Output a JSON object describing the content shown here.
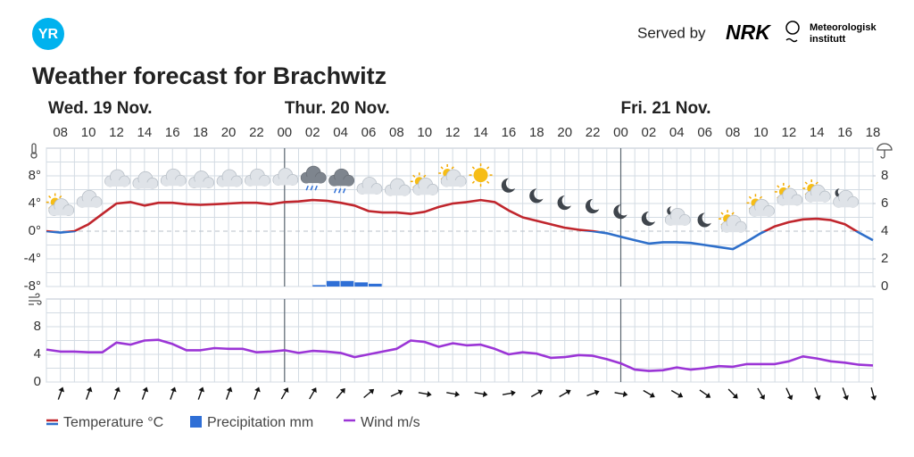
{
  "header": {
    "logo": "YR",
    "served_by": "Served by",
    "nrk_logo": "NRK",
    "met_logo": [
      "Meteorologisk",
      "institutt"
    ]
  },
  "chart_data": [
    {
      "type": "line",
      "title": "Weather forecast for Brachwitz",
      "days": [
        {
          "value": 0,
          "label": "Wed. 19 Nov."
        },
        {
          "value": 24,
          "label": "Thur. 20 Nov."
        },
        {
          "value": 48,
          "label": "Fri. 21 Nov."
        }
      ],
      "xlim": [
        7,
        66
      ],
      "xticks": [
        {
          "value": 8,
          "label": "08"
        },
        10,
        12,
        14,
        16,
        18,
        20,
        22,
        {
          "value": 24,
          "label": "00"
        },
        {
          "value": 26,
          "label": "02"
        },
        {
          "value": 28,
          "label": "04"
        },
        {
          "value": 30,
          "label": "06"
        },
        {
          "value": 32,
          "label": "08"
        },
        {
          "value": 34,
          "label": "10"
        },
        {
          "value": 36,
          "label": "12"
        },
        {
          "value": 38,
          "label": "14"
        },
        {
          "value": 40,
          "label": "16"
        },
        {
          "value": 42,
          "label": "18"
        },
        {
          "value": 44,
          "label": "20"
        },
        {
          "value": 46,
          "label": "22"
        },
        {
          "value": 48,
          "label": "00"
        },
        {
          "value": 50,
          "label": "02"
        },
        {
          "value": 52,
          "label": "04"
        },
        {
          "value": 54,
          "label": "06"
        },
        {
          "value": 56,
          "label": "08"
        },
        {
          "value": 58,
          "label": "10"
        },
        {
          "value": 60,
          "label": "12"
        },
        {
          "value": 62,
          "label": "14"
        },
        {
          "value": 64,
          "label": "16"
        },
        {
          "value": 66,
          "label": "18"
        }
      ],
      "ylim": [
        -8,
        12
      ],
      "yticks": [
        {
          "value": -8,
          "label": "-8°"
        },
        {
          "value": -4,
          "label": "-4°"
        },
        {
          "value": 0,
          "label": "0°"
        },
        {
          "value": 4,
          "label": "4°"
        },
        {
          "value": 8,
          "label": "8°"
        }
      ],
      "minor_yticks": [
        -6,
        -2,
        2,
        6,
        10
      ],
      "y2lim": [
        0,
        10
      ],
      "y2ticks": [
        0,
        2,
        4,
        6,
        8
      ],
      "grid": true,
      "series": [
        {
          "name": "Temperature °C",
          "color": "#c0262d",
          "color_below_zero": "#2e6fca",
          "x": [
            7,
            8,
            9,
            10,
            11,
            12,
            13,
            14,
            15,
            16,
            17,
            18,
            19,
            20,
            21,
            22,
            23,
            24,
            25,
            26,
            27,
            28,
            29,
            30,
            31,
            32,
            33,
            34,
            35,
            36,
            37,
            38,
            39,
            40,
            41,
            42,
            43,
            44,
            45,
            46,
            47,
            48,
            49,
            50,
            51,
            52,
            53,
            54,
            55,
            56,
            57,
            58,
            59,
            60,
            61,
            62,
            63,
            64,
            65,
            66
          ],
          "values": [
            0,
            -0.2,
            0,
            1,
            2.5,
            4,
            4.2,
            3.7,
            4.1,
            4.1,
            3.9,
            3.8,
            3.9,
            4,
            4.1,
            4.1,
            3.9,
            4.2,
            4.3,
            4.5,
            4.4,
            4.1,
            3.7,
            2.9,
            2.7,
            2.7,
            2.5,
            2.8,
            3.5,
            4.0,
            4.2,
            4.5,
            4.2,
            3.0,
            2.0,
            1.5,
            1.0,
            0.5,
            0.2,
            0,
            -0.3,
            -0.8,
            -1.3,
            -1.8,
            -1.6,
            -1.6,
            -1.7,
            -2.0,
            -2.3,
            -2.6,
            -1.5,
            -0.3,
            0.7,
            1.3,
            1.7,
            1.8,
            1.6,
            1.0,
            -0.2,
            -1.3
          ]
        },
        {
          "name": "Precipitation mm",
          "type": "bar",
          "axis": "y2",
          "color": "#2f6fd6",
          "x": [
            26,
            27,
            28,
            29,
            30
          ],
          "values": [
            0.1,
            0.4,
            0.4,
            0.3,
            0.2
          ]
        }
      ]
    },
    {
      "type": "line",
      "xlim": [
        7,
        66
      ],
      "ylim": [
        0,
        12
      ],
      "yticks": [
        0,
        4,
        8
      ],
      "minor_yticks": [
        2,
        6,
        10
      ],
      "grid": true,
      "series": [
        {
          "name": "Wind m/s",
          "color": "#9b35d6",
          "x": [
            7,
            8,
            9,
            10,
            11,
            12,
            13,
            14,
            15,
            16,
            17,
            18,
            19,
            20,
            21,
            22,
            23,
            24,
            25,
            26,
            27,
            28,
            29,
            30,
            31,
            32,
            33,
            34,
            35,
            36,
            37,
            38,
            39,
            40,
            41,
            42,
            43,
            44,
            45,
            46,
            47,
            48,
            49,
            50,
            51,
            52,
            53,
            54,
            55,
            56,
            57,
            58,
            59,
            60,
            61,
            62,
            63,
            64,
            65,
            66
          ],
          "values": [
            4.7,
            4.4,
            4.4,
            4.3,
            4.3,
            5.7,
            5.4,
            6.0,
            6.1,
            5.5,
            4.6,
            4.6,
            4.9,
            4.8,
            4.8,
            4.3,
            4.4,
            4.6,
            4.2,
            4.5,
            4.4,
            4.2,
            3.6,
            4.0,
            4.4,
            4.8,
            6.0,
            5.8,
            5.1,
            5.6,
            5.3,
            5.4,
            4.8,
            4.0,
            4.3,
            4.1,
            3.5,
            3.6,
            3.9,
            3.8,
            3.3,
            2.7,
            1.8,
            1.6,
            1.7,
            2.1,
            1.8,
            2.0,
            2.3,
            2.2,
            2.6,
            2.6,
            2.6,
            3.0,
            3.7,
            3.4,
            3.0,
            2.8,
            2.5,
            2.4
          ],
          "direction_x": [
            8,
            10,
            12,
            14,
            16,
            18,
            20,
            22,
            24,
            26,
            28,
            30,
            32,
            34,
            36,
            38,
            40,
            42,
            44,
            46,
            48,
            50,
            52,
            54,
            56,
            58,
            60,
            62,
            64,
            66
          ],
          "directions": [
            20,
            20,
            20,
            20,
            20,
            20,
            20,
            20,
            30,
            30,
            40,
            50,
            65,
            100,
            100,
            100,
            80,
            60,
            60,
            70,
            100,
            120,
            120,
            125,
            135,
            150,
            155,
            160,
            160,
            165
          ]
        }
      ]
    }
  ]
}
